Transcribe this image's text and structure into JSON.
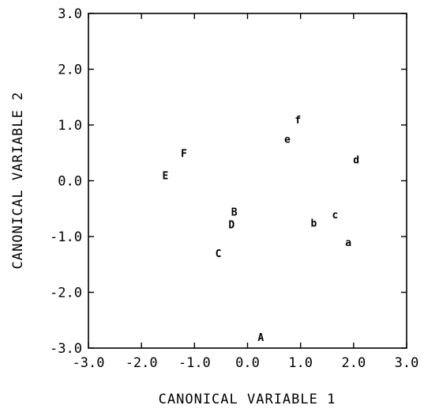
{
  "chart_data": {
    "type": "scatter",
    "title": "",
    "xlabel": "CANONICAL VARIABLE 1",
    "ylabel": "CANONICAL VARIABLE 2",
    "xlim": [
      -3.0,
      3.0
    ],
    "ylim": [
      -3.0,
      3.0
    ],
    "xticks": [
      -3.0,
      -2.0,
      -1.0,
      0.0,
      1.0,
      2.0,
      3.0
    ],
    "yticks": [
      -3.0,
      -2.0,
      -1.0,
      0.0,
      1.0,
      2.0,
      3.0
    ],
    "xtick_labels": [
      "-3.0",
      "-2.0",
      "-1.0",
      "0.0",
      "1.0",
      "2.0",
      "3.0"
    ],
    "ytick_labels": [
      "-3.0",
      "-2.0",
      "-1.0",
      "0.0",
      "1.0",
      "2.0",
      "3.0"
    ],
    "grid": false,
    "points": [
      {
        "label": "A",
        "x": 0.25,
        "y": -2.8
      },
      {
        "label": "B",
        "x": -0.25,
        "y": -0.55
      },
      {
        "label": "C",
        "x": -0.55,
        "y": -1.3
      },
      {
        "label": "D",
        "x": -0.3,
        "y": -0.78
      },
      {
        "label": "E",
        "x": -1.55,
        "y": 0.1
      },
      {
        "label": "F",
        "x": -1.2,
        "y": 0.5
      },
      {
        "label": "a",
        "x": 1.9,
        "y": -1.1
      },
      {
        "label": "b",
        "x": 1.25,
        "y": -0.75
      },
      {
        "label": "c",
        "x": 1.65,
        "y": -0.6
      },
      {
        "label": "d",
        "x": 2.05,
        "y": 0.38
      },
      {
        "label": "e",
        "x": 0.75,
        "y": 0.75
      },
      {
        "label": "f",
        "x": 0.95,
        "y": 1.1
      }
    ]
  }
}
